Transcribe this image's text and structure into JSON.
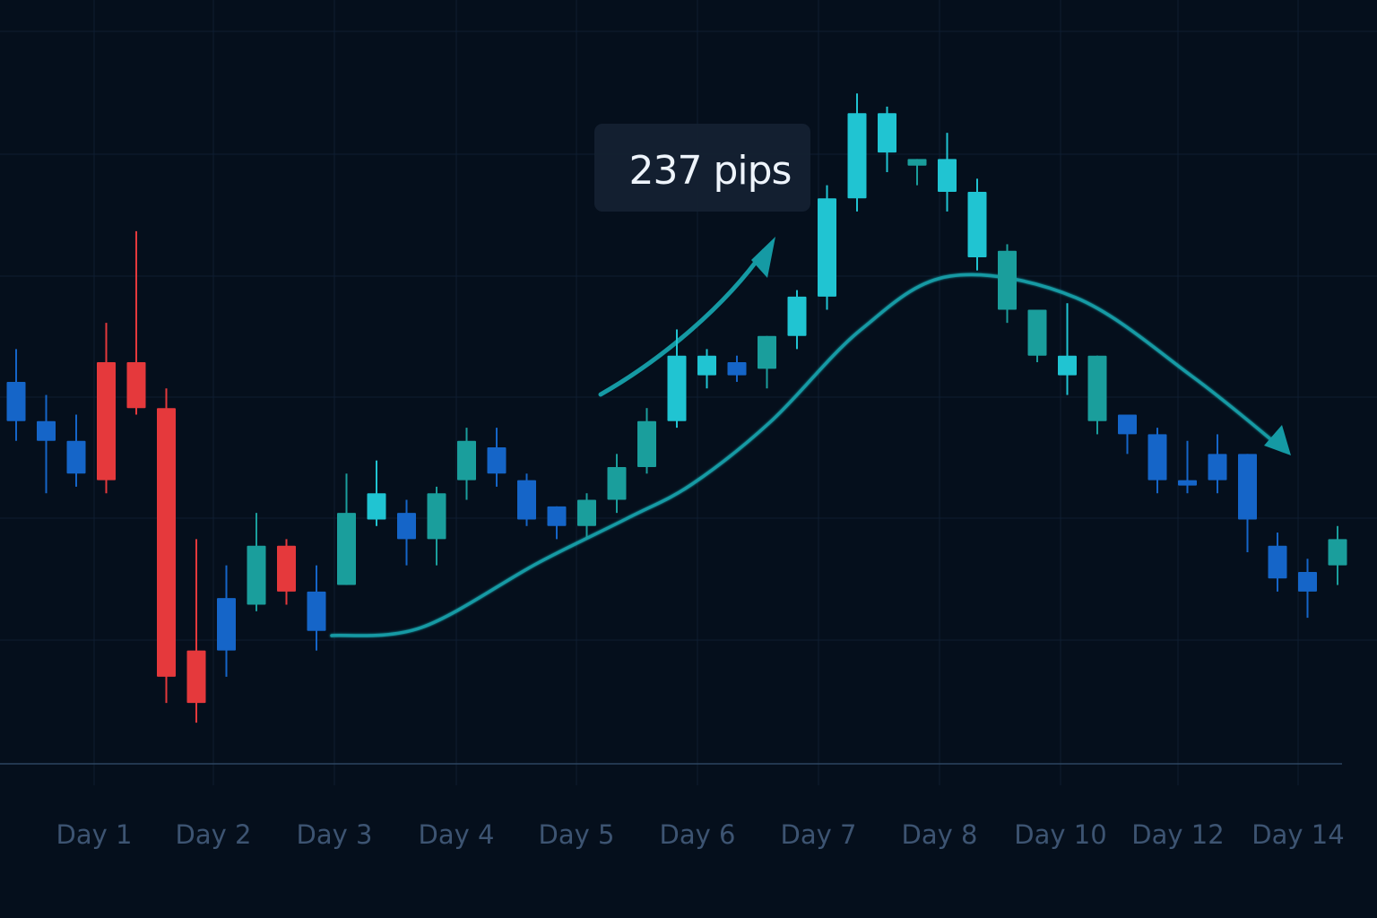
{
  "chart_data": {
    "type": "candlestick",
    "x_ticks": [
      "Day 1",
      "Day 2",
      "Day 3",
      "Day 4",
      "Day 5",
      "Day 6",
      "Day 7",
      "Day 8",
      "Day 10",
      "Day 12",
      "Day 14"
    ],
    "ylim": [
      0,
      100
    ],
    "grid": true,
    "annotation": "237 pips",
    "colors": {
      "background": "#050f1c",
      "bearish_red": "#e5393c",
      "blue": "#1565c8",
      "teal": "#1a9e9c",
      "cyan": "#20c4d2",
      "curve": "#159aa4",
      "grid": "#0e1e31",
      "axis": "#2d4560",
      "label": "#3d5472"
    },
    "candles": [
      {
        "o": 55.0,
        "h": 60.0,
        "l": 46.0,
        "c": 49.0,
        "color": "blue"
      },
      {
        "o": 49.0,
        "h": 53.0,
        "l": 38.0,
        "c": 46.0,
        "color": "blue"
      },
      {
        "o": 46.0,
        "h": 50.0,
        "l": 39.0,
        "c": 41.0,
        "color": "blue"
      },
      {
        "o": 58.0,
        "h": 64.0,
        "l": 38.0,
        "c": 40.0,
        "color": "red"
      },
      {
        "o": 58.0,
        "h": 78.0,
        "l": 50.0,
        "c": 51.0,
        "color": "red"
      },
      {
        "o": 51.0,
        "h": 54.0,
        "l": 6.0,
        "c": 10.0,
        "color": "red"
      },
      {
        "o": 14.0,
        "h": 31.0,
        "l": 3.0,
        "c": 6.0,
        "color": "red"
      },
      {
        "o": 14.0,
        "h": 27.0,
        "l": 10.0,
        "c": 22.0,
        "color": "blue"
      },
      {
        "o": 21.0,
        "h": 35.0,
        "l": 20.0,
        "c": 30.0,
        "color": "teal"
      },
      {
        "o": 30.0,
        "h": 31.0,
        "l": 21.0,
        "c": 23.0,
        "color": "red"
      },
      {
        "o": 17.0,
        "h": 27.0,
        "l": 14.0,
        "c": 23.0,
        "color": "blue"
      },
      {
        "o": 24.0,
        "h": 41.0,
        "l": 24.0,
        "c": 35.0,
        "color": "teal"
      },
      {
        "o": 34.0,
        "h": 43.0,
        "l": 33.0,
        "c": 38.0,
        "color": "cyan"
      },
      {
        "o": 35.0,
        "h": 37.0,
        "l": 27.0,
        "c": 31.0,
        "color": "blue"
      },
      {
        "o": 38.0,
        "h": 39.0,
        "l": 27.0,
        "c": 31.0,
        "color": "teal"
      },
      {
        "o": 40.0,
        "h": 48.0,
        "l": 37.0,
        "c": 46.0,
        "color": "teal"
      },
      {
        "o": 45.0,
        "h": 48.0,
        "l": 39.0,
        "c": 41.0,
        "color": "blue"
      },
      {
        "o": 40.0,
        "h": 41.0,
        "l": 33.0,
        "c": 34.0,
        "color": "blue"
      },
      {
        "o": 36.0,
        "h": 36.0,
        "l": 31.0,
        "c": 33.0,
        "color": "blue"
      },
      {
        "o": 33.0,
        "h": 38.0,
        "l": 31.0,
        "c": 37.0,
        "color": "teal"
      },
      {
        "o": 37.0,
        "h": 44.0,
        "l": 35.0,
        "c": 42.0,
        "color": "teal"
      },
      {
        "o": 42.0,
        "h": 51.0,
        "l": 41.0,
        "c": 49.0,
        "color": "teal"
      },
      {
        "o": 49.0,
        "h": 63.0,
        "l": 48.0,
        "c": 59.0,
        "color": "cyan"
      },
      {
        "o": 56.0,
        "h": 60.0,
        "l": 54.0,
        "c": 59.0,
        "color": "cyan"
      },
      {
        "o": 58.0,
        "h": 59.0,
        "l": 55.0,
        "c": 56.0,
        "color": "blue"
      },
      {
        "o": 57.0,
        "h": 62.0,
        "l": 54.0,
        "c": 62.0,
        "color": "teal"
      },
      {
        "o": 62.0,
        "h": 69.0,
        "l": 60.0,
        "c": 68.0,
        "color": "cyan"
      },
      {
        "o": 68.0,
        "h": 85.0,
        "l": 66.0,
        "c": 83.0,
        "color": "cyan"
      },
      {
        "o": 83.0,
        "h": 99.0,
        "l": 81.0,
        "c": 96.0,
        "color": "cyan"
      },
      {
        "o": 96.0,
        "h": 97.0,
        "l": 87.0,
        "c": 90.0,
        "color": "cyan"
      },
      {
        "o": 89.0,
        "h": 89.0,
        "l": 85.0,
        "c": 88.0,
        "color": "teal"
      },
      {
        "o": 89.0,
        "h": 93.0,
        "l": 81.0,
        "c": 84.0,
        "color": "cyan"
      },
      {
        "o": 84.0,
        "h": 86.0,
        "l": 72.0,
        "c": 74.0,
        "color": "cyan"
      },
      {
        "o": 75.0,
        "h": 76.0,
        "l": 64.0,
        "c": 66.0,
        "color": "teal"
      },
      {
        "o": 66.0,
        "h": 66.0,
        "l": 58.0,
        "c": 59.0,
        "color": "teal"
      },
      {
        "o": 59.0,
        "h": 67.0,
        "l": 53.0,
        "c": 56.0,
        "color": "cyan"
      },
      {
        "o": 59.0,
        "h": 59.0,
        "l": 47.0,
        "c": 49.0,
        "color": "teal"
      },
      {
        "o": 50.0,
        "h": 50.0,
        "l": 44.0,
        "c": 47.0,
        "color": "blue"
      },
      {
        "o": 47.0,
        "h": 48.0,
        "l": 38.0,
        "c": 40.0,
        "color": "blue"
      },
      {
        "o": 40.0,
        "h": 46.0,
        "l": 38.0,
        "c": 40.0,
        "color": "blue"
      },
      {
        "o": 40.0,
        "h": 47.0,
        "l": 38.0,
        "c": 44.0,
        "color": "blue"
      },
      {
        "o": 44.0,
        "h": 44.0,
        "l": 29.0,
        "c": 34.0,
        "color": "blue"
      },
      {
        "o": 30.0,
        "h": 32.0,
        "l": 23.0,
        "c": 25.0,
        "color": "blue"
      },
      {
        "o": 26.0,
        "h": 28.0,
        "l": 19.0,
        "c": 23.0,
        "color": "blue"
      },
      {
        "o": 27.0,
        "h": 33.0,
        "l": 24.0,
        "c": 31.0,
        "color": "teal"
      }
    ],
    "moving_average": [
      {
        "x": 0,
        "y": 17
      },
      {
        "x": 8,
        "y": 19
      },
      {
        "x": 14,
        "y": 28
      },
      {
        "x": 18,
        "y": 35
      },
      {
        "x": 24,
        "y": 50
      },
      {
        "x": 28,
        "y": 66
      },
      {
        "x": 32,
        "y": 76
      },
      {
        "x": 36,
        "y": 73
      },
      {
        "x": 40,
        "y": 63
      },
      {
        "x": 43,
        "y": 54
      }
    ]
  }
}
